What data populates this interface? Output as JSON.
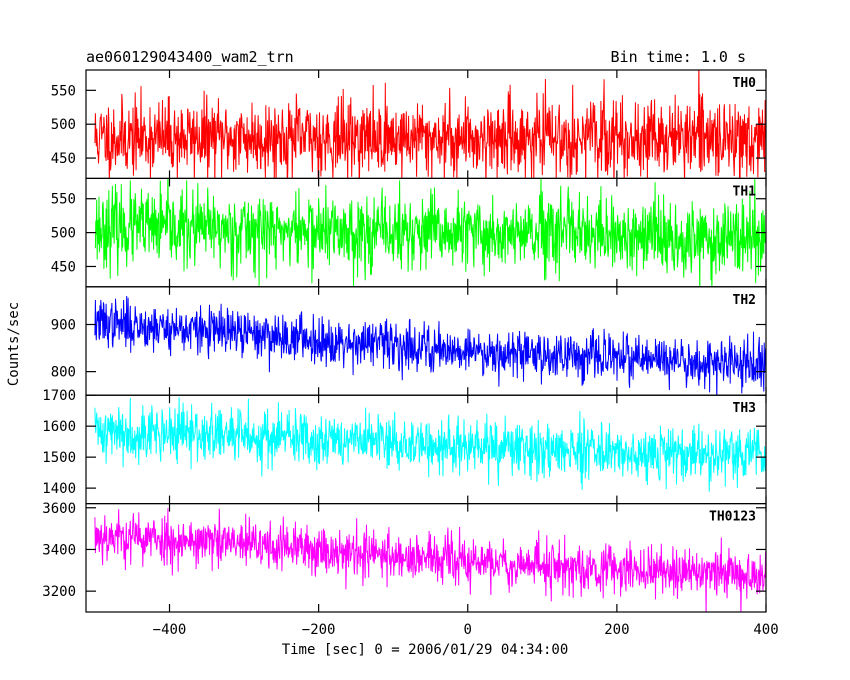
{
  "chart_data": {
    "type": "line",
    "title": "ae060129043400_wam2_trn",
    "subtitle": "Bin time: 1.0 s",
    "xlabel": "Time [sec] 0 = 2006/01/29 04:34:00",
    "ylabel": "Counts/sec",
    "xlim": [
      -512,
      400
    ],
    "xticks": [
      -400,
      -200,
      0,
      200,
      400
    ],
    "grid": false,
    "bin_time_s": 1.0,
    "panels": [
      {
        "name": "TH0",
        "color": "#ff0000",
        "ylim": [
          420,
          580
        ],
        "yticks": [
          450,
          500,
          550
        ],
        "profile": [
          [
            -500,
            480
          ],
          [
            400,
            480
          ]
        ],
        "noise": 28,
        "seed": 11
      },
      {
        "name": "TH1",
        "color": "#00ff00",
        "ylim": [
          420,
          580
        ],
        "yticks": [
          450,
          500,
          550
        ],
        "profile": [
          [
            -500,
            508
          ],
          [
            400,
            490
          ]
        ],
        "noise": 28,
        "seed": 23
      },
      {
        "name": "TH2",
        "color": "#0000ff",
        "ylim": [
          750,
          980
        ],
        "yticks": [
          800,
          900
        ],
        "profile": [
          [
            -500,
            905
          ],
          [
            -200,
            868
          ],
          [
            0,
            845
          ],
          [
            400,
            812
          ]
        ],
        "noise": 25,
        "seed": 37
      },
      {
        "name": "TH3",
        "color": "#00ffff",
        "ylim": [
          1350,
          1700
        ],
        "yticks": [
          1400,
          1500,
          1600,
          1700
        ],
        "profile": [
          [
            -500,
            1585
          ],
          [
            -200,
            1560
          ],
          [
            0,
            1530
          ],
          [
            400,
            1505
          ]
        ],
        "noise": 45,
        "seed": 41
      },
      {
        "name": "TH0123",
        "color": "#ff00ff",
        "ylim": [
          3100,
          3620
        ],
        "yticks": [
          3200,
          3400,
          3600
        ],
        "profile": [
          [
            -500,
            3470
          ],
          [
            -200,
            3400
          ],
          [
            0,
            3340
          ],
          [
            400,
            3275
          ]
        ],
        "noise": 60,
        "seed": 53
      }
    ]
  }
}
